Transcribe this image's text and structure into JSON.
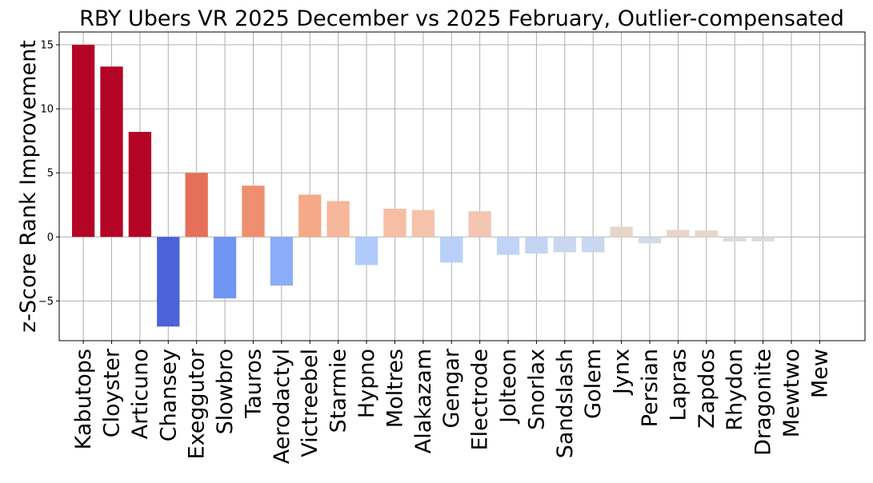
{
  "chart_data": {
    "type": "bar",
    "title": "RBY Ubers VR 2025 December vs 2025 February, Outlier-compensated",
    "xlabel": "",
    "ylabel": "z-Score Rank Improvement",
    "ylim": [
      -8.1,
      16.0
    ],
    "yticks": [
      -5,
      0,
      5,
      10,
      15
    ],
    "ytick_labels": [
      "−5",
      "0",
      "5",
      "10",
      "15"
    ],
    "grid": true,
    "colormap": "coolwarm",
    "categories": [
      "Kabutops",
      "Cloyster",
      "Articuno",
      "Chansey",
      "Exeggutor",
      "Slowbro",
      "Tauros",
      "Aerodactyl",
      "Victreebel",
      "Starmie",
      "Hypno",
      "Moltres",
      "Alakazam",
      "Gengar",
      "Electrode",
      "Jolteon",
      "Snorlax",
      "Sandslash",
      "Golem",
      "Jynx",
      "Persian",
      "Lapras",
      "Zapdos",
      "Rhydon",
      "Dragonite",
      "Mewtwo",
      "Mew"
    ],
    "values": [
      15.0,
      13.3,
      8.2,
      -7.0,
      5.0,
      -4.8,
      4.0,
      -3.8,
      3.3,
      2.8,
      -2.2,
      2.2,
      2.1,
      -2.0,
      2.0,
      -1.4,
      -1.3,
      -1.2,
      -1.2,
      0.8,
      -0.5,
      0.55,
      0.5,
      -0.35,
      -0.35,
      0.0,
      0.0
    ],
    "colors": [
      "#b40426",
      "#b40426",
      "#b40426",
      "#4b62d8",
      "#e5705a",
      "#7195f4",
      "#ee906f",
      "#8cacf9",
      "#f4aa87",
      "#f6b79a",
      "#b0cbfb",
      "#f6bea5",
      "#f4c3aa",
      "#b9d0f9",
      "#f2c6b0",
      "#c1d4f5",
      "#c4d5f3",
      "#c9d7f0",
      "#c9d7f0",
      "#e8d5ca",
      "#d5dbe5",
      "#e8d5ca",
      "#e6d6cc",
      "#dadce0",
      "#dadce0",
      "#dddcdc",
      "#dddcdc"
    ]
  }
}
